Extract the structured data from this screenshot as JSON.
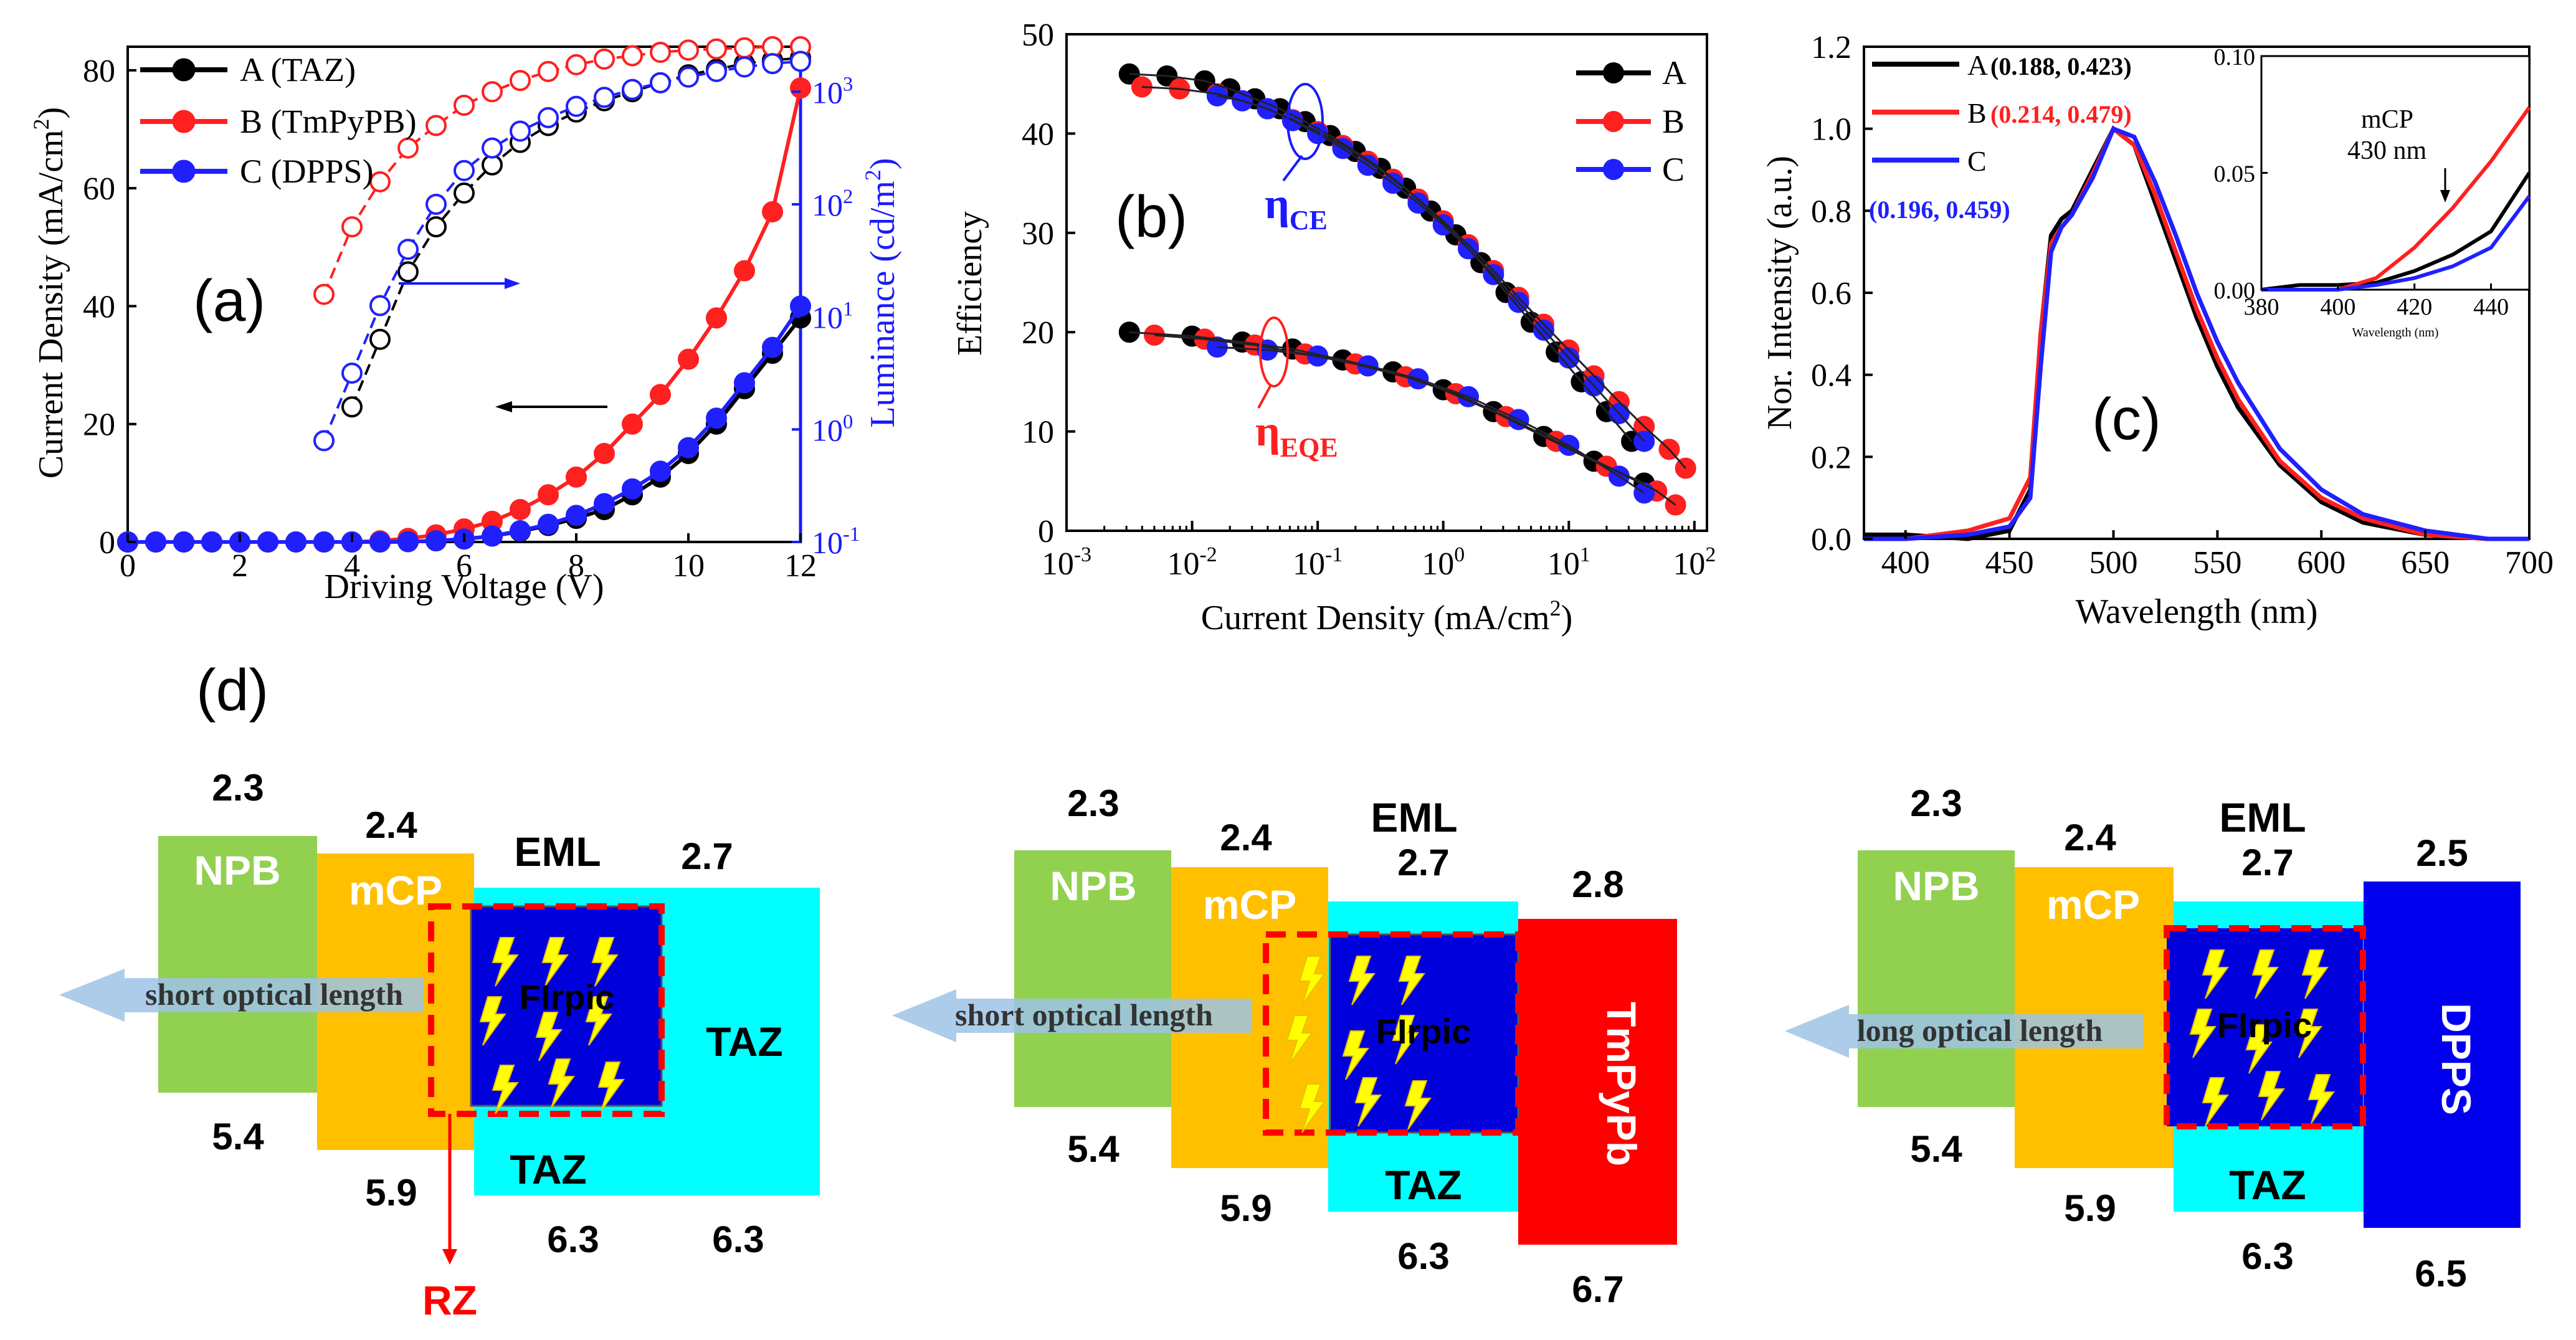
{
  "colors": {
    "A": "#000000",
    "B": "#ff2020",
    "C": "#2020ff",
    "axis_blue": "#1a1aff",
    "npb": "#92d050",
    "mcp": "#ffc000",
    "taz": "#00ffff",
    "eml": "#0000dd",
    "tmpypb": "#ff0000",
    "dpps": "#0000ee",
    "rz": "#ff0000",
    "arrow": "#9dc3e6",
    "bolt": "#ffff00"
  },
  "panel_a": {
    "label": "(a)",
    "xlabel": "Driving Voltage (V)",
    "ylabel": "Current Density (mA/cm",
    "ylabel_sup": "2",
    "ylabel_end": ")",
    "y2label": "Luminance (cd/m",
    "y2label_sup": "2",
    "y2label_end": ")",
    "xticks": [
      "0",
      "2",
      "4",
      "6",
      "8",
      "10",
      "12"
    ],
    "yticks": [
      "0",
      "20",
      "40",
      "60",
      "80"
    ],
    "y2ticks": [
      {
        "base": "10",
        "exp": "-1"
      },
      {
        "base": "10",
        "exp": "0"
      },
      {
        "base": "10",
        "exp": "1"
      },
      {
        "base": "10",
        "exp": "2"
      },
      {
        "base": "10",
        "exp": "3"
      }
    ],
    "legend": [
      "A (TAZ)",
      "B (TmPyPB)",
      "C (DPPS)"
    ]
  },
  "panel_b": {
    "label": "(b)",
    "xlabel": "Current Density (mA/cm",
    "xlabel_sup": "2",
    "xlabel_end": ")",
    "ylabel": "Efficiency",
    "xticks": [
      {
        "base": "10",
        "exp": "-3"
      },
      {
        "base": "10",
        "exp": "-2"
      },
      {
        "base": "10",
        "exp": "-1"
      },
      {
        "base": "10",
        "exp": "0"
      },
      {
        "base": "10",
        "exp": "1"
      },
      {
        "base": "10",
        "exp": "2"
      }
    ],
    "yticks": [
      "0",
      "10",
      "20",
      "30",
      "40",
      "50"
    ],
    "legend": [
      "A",
      "B",
      "C"
    ],
    "ce_label": "η",
    "ce_sub": "CE",
    "eqe_label": "η",
    "eqe_sub": "EQE"
  },
  "panel_c": {
    "label": "(c)",
    "xlabel": "Wavelength (nm)",
    "ylabel": "Nor. Intensity (a.u.)",
    "xticks": [
      "400",
      "450",
      "500",
      "550",
      "600",
      "650",
      "700"
    ],
    "yticks": [
      "0.0",
      "0.2",
      "0.4",
      "0.6",
      "0.8",
      "1.0",
      "1.2"
    ],
    "legend": [
      {
        "name": "A",
        "cie": "(0.188, 0.423)"
      },
      {
        "name": "B",
        "cie": "(0.214, 0.479)"
      },
      {
        "name": "C",
        "cie": "(0.196, 0.459)"
      }
    ],
    "inset": {
      "xticks": [
        "380",
        "400",
        "420",
        "440"
      ],
      "yticks": [
        "0.00",
        "0.05",
        "0.10"
      ],
      "xlabel": "Wavelength (nm)",
      "note1": "mCP",
      "note2": "430 nm"
    }
  },
  "panel_d": {
    "label": "(d)",
    "diagrams": [
      {
        "npb": "NPB",
        "mcp": "mCP",
        "eml": "EML",
        "emitter": "FIrpic",
        "taz": "TAZ",
        "etl": "TAZ",
        "arrow": "short optical length",
        "npb_lumo": "2.3",
        "mcp_lumo": "2.4",
        "taz_lumo": "2.7",
        "npb_homo": "5.4",
        "mcp_homo": "5.9",
        "taz_homo": "6.3",
        "etl_homo": "6.3",
        "rz": "RZ"
      },
      {
        "npb": "NPB",
        "mcp": "mCP",
        "eml": "EML",
        "emitter": "FIrpic",
        "taz": "TAZ",
        "etl": "TmPyPb",
        "arrow": "short optical length",
        "npb_lumo": "2.3",
        "mcp_lumo": "2.4",
        "taz_lumo": "2.7",
        "etl_lumo": "2.8",
        "npb_homo": "5.4",
        "mcp_homo": "5.9",
        "taz_homo": "6.3",
        "etl_homo": "6.7"
      },
      {
        "npb": "NPB",
        "mcp": "mCP",
        "eml": "EML",
        "emitter": "FIrpic",
        "taz": "TAZ",
        "etl": "DPPS",
        "arrow": "long optical length",
        "npb_lumo": "2.3",
        "mcp_lumo": "2.4",
        "taz_lumo": "2.7",
        "etl_lumo": "2.5",
        "npb_homo": "5.4",
        "mcp_homo": "5.9",
        "taz_homo": "6.3",
        "etl_homo": "6.5"
      }
    ]
  },
  "chart_data": [
    {
      "type": "line",
      "title": "(a)",
      "xlabel": "Driving Voltage (V)",
      "ylabel": "Current Density (mA/cm2)",
      "y2label": "Luminance (cd/m2)",
      "xlim": [
        0,
        12
      ],
      "ylim": [
        0,
        84
      ],
      "y2lim_log10": [
        -1,
        3.4
      ],
      "current_density": [
        {
          "name": "A (TAZ)",
          "x": [
            0,
            0.5,
            1,
            1.5,
            2,
            2.5,
            3,
            3.5,
            4,
            4.5,
            5,
            5.5,
            6,
            6.5,
            7,
            7.5,
            8,
            8.5,
            9,
            9.5,
            10,
            10.5,
            11,
            11.5,
            12
          ],
          "values": [
            0,
            0,
            0,
            0,
            0,
            0,
            0,
            0,
            0,
            0,
            0.05,
            0.2,
            0.5,
            1.0,
            1.8,
            2.8,
            4,
            5.5,
            8,
            11,
            15,
            20,
            26,
            32,
            38
          ]
        },
        {
          "name": "B (TmPyPB)",
          "x": [
            0,
            0.5,
            1,
            1.5,
            2,
            2.5,
            3,
            3.5,
            4,
            4.5,
            5,
            5.5,
            6,
            6.5,
            7,
            7.5,
            8,
            8.5,
            9,
            9.5,
            10,
            10.5,
            11,
            11.5,
            12
          ],
          "values": [
            0,
            0,
            0,
            0,
            0,
            0,
            0,
            0,
            0,
            0.2,
            0.6,
            1.2,
            2.2,
            3.5,
            5.5,
            8,
            11,
            15,
            20,
            25,
            31,
            38,
            46,
            56,
            77
          ]
        },
        {
          "name": "C (DPPS)",
          "x": [
            0,
            0.5,
            1,
            1.5,
            2,
            2.5,
            3,
            3.5,
            4,
            4.5,
            5,
            5.5,
            6,
            6.5,
            7,
            7.5,
            8,
            8.5,
            9,
            9.5,
            10,
            10.5,
            11,
            11.5,
            12
          ],
          "values": [
            0,
            0,
            0,
            0,
            0,
            0,
            0,
            0,
            0,
            0,
            0.05,
            0.2,
            0.5,
            1.0,
            1.9,
            3.0,
            4.5,
            6.5,
            9,
            12,
            16,
            21,
            27,
            33,
            40
          ]
        }
      ],
      "luminance": [
        {
          "name": "A (TAZ)",
          "x": [
            4,
            4.5,
            5,
            5.5,
            6,
            6.5,
            7,
            7.5,
            8,
            8.5,
            9,
            9.5,
            10,
            10.5,
            11,
            11.5,
            12
          ],
          "values_log10": [
            0.2,
            0.8,
            1.4,
            1.8,
            2.1,
            2.35,
            2.55,
            2.7,
            2.82,
            2.92,
            3.0,
            3.08,
            3.15,
            3.2,
            3.25,
            3.28,
            3.3
          ]
        },
        {
          "name": "B (TmPyPB)",
          "x": [
            3.5,
            4,
            4.5,
            5,
            5.5,
            6,
            6.5,
            7,
            7.5,
            8,
            8.5,
            9,
            9.5,
            10,
            10.5,
            11,
            11.5,
            12
          ],
          "values_log10": [
            1.2,
            1.8,
            2.2,
            2.5,
            2.7,
            2.88,
            3.0,
            3.1,
            3.18,
            3.24,
            3.29,
            3.32,
            3.35,
            3.37,
            3.38,
            3.39,
            3.4,
            3.4
          ]
        },
        {
          "name": "C (DPPS)",
          "x": [
            3.5,
            4,
            4.5,
            5,
            5.5,
            6,
            6.5,
            7,
            7.5,
            8,
            8.5,
            9,
            9.5,
            10,
            10.5,
            11,
            11.5,
            12
          ],
          "values_log10": [
            -0.1,
            0.5,
            1.1,
            1.6,
            2.0,
            2.3,
            2.5,
            2.65,
            2.77,
            2.87,
            2.95,
            3.02,
            3.08,
            3.13,
            3.18,
            3.22,
            3.25,
            3.27
          ]
        }
      ]
    },
    {
      "type": "scatter",
      "title": "(b)",
      "xlabel": "Current Density (mA/cm2)",
      "ylabel": "Efficiency",
      "xscale": "log",
      "xlim_log10": [
        -3,
        2.1
      ],
      "ylim": [
        0,
        50
      ],
      "series": [
        {
          "name": "A",
          "metric": "CE",
          "x_log10": [
            -2.5,
            -2.2,
            -1.9,
            -1.7,
            -1.5,
            -1.3,
            -1.1,
            -0.9,
            -0.7,
            -0.5,
            -0.3,
            -0.1,
            0.1,
            0.3,
            0.5,
            0.7,
            0.9,
            1.1,
            1.3,
            1.5
          ],
          "values": [
            46,
            45.8,
            45.3,
            44.5,
            43.5,
            42.5,
            41.2,
            39.8,
            38.2,
            36.5,
            34.5,
            32.2,
            29.8,
            27,
            24,
            21,
            18,
            15,
            12,
            9
          ]
        },
        {
          "name": "B",
          "metric": "CE",
          "x_log10": [
            -2.4,
            -2.1,
            -1.8,
            -1.6,
            -1.4,
            -1.2,
            -1.0,
            -0.8,
            -0.6,
            -0.4,
            -0.2,
            0,
            0.2,
            0.4,
            0.6,
            0.8,
            1.0,
            1.2,
            1.4,
            1.6,
            1.8,
            1.93
          ],
          "values": [
            44.7,
            44.5,
            44,
            43.3,
            42.5,
            41.4,
            40.2,
            38.8,
            37.2,
            35.4,
            33.4,
            31.2,
            28.8,
            26.2,
            23.5,
            20.8,
            18.2,
            15.6,
            13,
            10.5,
            8.2,
            6.3
          ]
        },
        {
          "name": "C",
          "metric": "CE",
          "x_log10": [
            -1.8,
            -1.6,
            -1.4,
            -1.2,
            -1.0,
            -0.8,
            -0.6,
            -0.4,
            -0.2,
            0,
            0.2,
            0.4,
            0.6,
            0.8,
            1.0,
            1.2,
            1.4,
            1.6
          ],
          "values": [
            43.8,
            43.3,
            42.5,
            41.3,
            40,
            38.5,
            36.8,
            35,
            33,
            30.8,
            28.4,
            25.8,
            23,
            20.2,
            17.4,
            14.6,
            11.8,
            9
          ]
        },
        {
          "name": "A",
          "metric": "EQE",
          "x_log10": [
            -2.5,
            -2.0,
            -1.6,
            -1.2,
            -0.8,
            -0.4,
            0,
            0.4,
            0.8,
            1.2,
            1.6
          ],
          "values": [
            20,
            19.6,
            19,
            18.3,
            17.2,
            16,
            14.2,
            12,
            9.5,
            7,
            4.8
          ]
        },
        {
          "name": "B",
          "metric": "EQE",
          "x_log10": [
            -2.3,
            -1.9,
            -1.5,
            -1.1,
            -0.7,
            -0.3,
            0.1,
            0.5,
            0.9,
            1.3,
            1.7,
            1.85
          ],
          "values": [
            19.7,
            19.3,
            18.7,
            17.8,
            16.8,
            15.5,
            13.8,
            11.5,
            9,
            6.5,
            4,
            2.6
          ]
        },
        {
          "name": "C",
          "metric": "EQE",
          "x_log10": [
            -1.8,
            -1.4,
            -1.0,
            -0.6,
            -0.2,
            0.2,
            0.6,
            1.0,
            1.4,
            1.6
          ],
          "values": [
            18.5,
            18.2,
            17.6,
            16.6,
            15.3,
            13.5,
            11.2,
            8.6,
            5.5,
            3.8
          ]
        }
      ]
    },
    {
      "type": "line",
      "title": "(c)",
      "xlabel": "Wavelength (nm)",
      "ylabel": "Nor. Intensity (a.u.)",
      "xlim": [
        380,
        700
      ],
      "ylim": [
        0,
        1.2
      ],
      "series": [
        {
          "name": "A",
          "cie": "(0.188, 0.423)",
          "x": [
            380,
            400,
            430,
            450,
            460,
            465,
            470,
            475,
            480,
            490,
            500,
            510,
            520,
            530,
            540,
            550,
            560,
            580,
            600,
            620,
            650,
            680,
            700
          ],
          "values": [
            0.01,
            0.01,
            0.0,
            0.02,
            0.12,
            0.5,
            0.74,
            0.78,
            0.8,
            0.9,
            1.0,
            0.96,
            0.82,
            0.68,
            0.54,
            0.42,
            0.32,
            0.18,
            0.09,
            0.04,
            0.01,
            0.0,
            0.0
          ]
        },
        {
          "name": "B",
          "cie": "(0.214, 0.479)",
          "x": [
            380,
            400,
            430,
            450,
            460,
            465,
            470,
            475,
            480,
            490,
            500,
            510,
            520,
            530,
            540,
            550,
            560,
            580,
            600,
            620,
            650,
            680,
            700
          ],
          "values": [
            0.0,
            0.0,
            0.02,
            0.05,
            0.15,
            0.5,
            0.72,
            0.76,
            0.79,
            0.89,
            1.0,
            0.96,
            0.84,
            0.7,
            0.56,
            0.44,
            0.34,
            0.19,
            0.1,
            0.05,
            0.01,
            0.0,
            0.0
          ]
        },
        {
          "name": "C",
          "cie": "(0.196, 0.459)",
          "x": [
            380,
            400,
            430,
            450,
            460,
            465,
            470,
            475,
            480,
            490,
            500,
            510,
            520,
            530,
            540,
            550,
            560,
            580,
            600,
            620,
            650,
            680,
            700
          ],
          "values": [
            0.0,
            0.0,
            0.01,
            0.03,
            0.1,
            0.42,
            0.7,
            0.76,
            0.79,
            0.88,
            1.0,
            0.98,
            0.87,
            0.74,
            0.6,
            0.48,
            0.38,
            0.22,
            0.12,
            0.06,
            0.02,
            0.0,
            0.0
          ]
        }
      ],
      "inset": {
        "xlim": [
          380,
          450
        ],
        "ylim": [
          0,
          0.1
        ],
        "series": [
          {
            "name": "A",
            "x": [
              380,
              390,
              400,
              410,
              420,
              430,
              440,
              450
            ],
            "values": [
              0.0,
              0.002,
              0.002,
              0.003,
              0.008,
              0.015,
              0.025,
              0.05
            ]
          },
          {
            "name": "B",
            "x": [
              380,
              390,
              400,
              410,
              420,
              430,
              440,
              450
            ],
            "values": [
              0.0,
              0.0,
              0.0,
              0.005,
              0.018,
              0.035,
              0.055,
              0.078
            ]
          },
          {
            "name": "C",
            "x": [
              380,
              390,
              400,
              410,
              420,
              430,
              440,
              450
            ],
            "values": [
              0.0,
              0.0,
              0.0,
              0.002,
              0.005,
              0.01,
              0.018,
              0.04
            ]
          }
        ]
      }
    }
  ]
}
